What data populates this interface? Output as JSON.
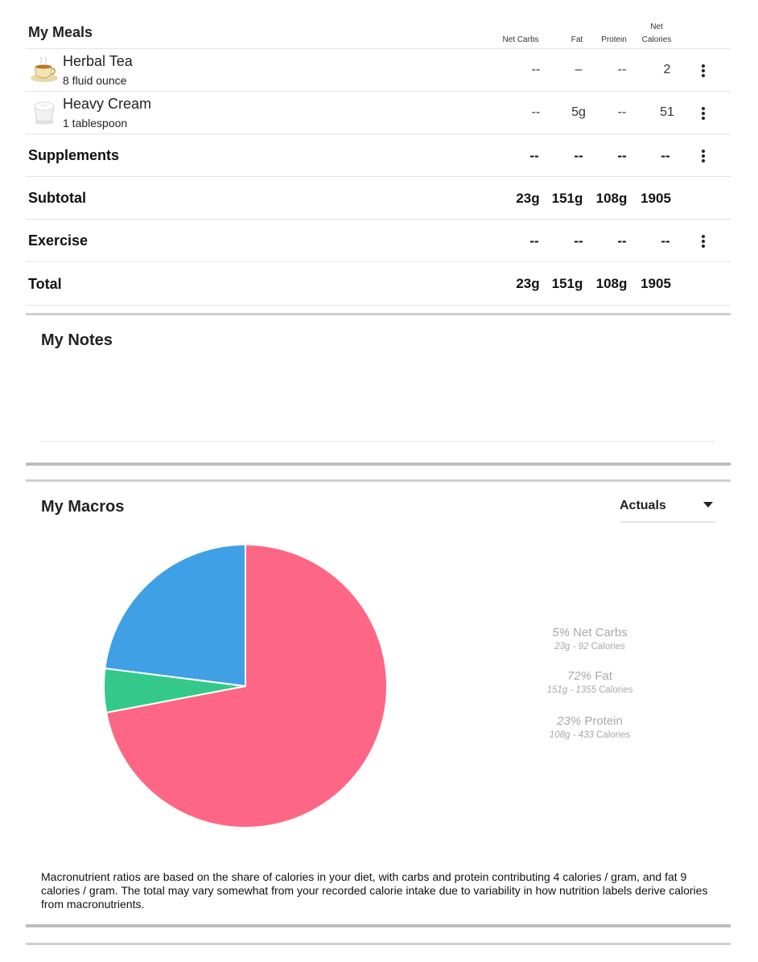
{
  "meals": {
    "title": "My Meals",
    "columns": {
      "net_carbs": "Net Carbs",
      "fat": "Fat",
      "protein": "Protein",
      "net_calories_1": "Net",
      "net_calories_2": "Calories"
    },
    "items": [
      {
        "name": "Herbal Tea",
        "qty": "8 fluid ounce",
        "net_carbs": "--",
        "fat": "–",
        "protein": "--",
        "calories": "2",
        "icon": "tea-cup-icon"
      },
      {
        "name": "Heavy Cream",
        "qty": "1 tablespoon",
        "net_carbs": "--",
        "fat": "5g",
        "protein": "--",
        "calories": "51",
        "icon": "cream-cup-icon"
      }
    ],
    "supplements": {
      "label": "Supplements",
      "net_carbs": "--",
      "fat": "--",
      "protein": "--",
      "calories": "--"
    },
    "subtotal": {
      "label": "Subtotal",
      "net_carbs": "23g",
      "fat": "151g",
      "protein": "108g",
      "calories": "1905"
    },
    "exercise": {
      "label": "Exercise",
      "net_carbs": "--",
      "fat": "--",
      "protein": "--",
      "calories": "--"
    },
    "total": {
      "label": "Total",
      "net_carbs": "23g",
      "fat": "151g",
      "protein": "108g",
      "calories": "1905"
    }
  },
  "notes": {
    "title": "My Notes"
  },
  "macros": {
    "title": "My Macros",
    "dropdown": {
      "selected": "Actuals"
    },
    "colors": {
      "net_carbs": "#34c98a",
      "fat": "#fe6685",
      "protein": "#3fa0e6"
    },
    "legend": [
      {
        "pct": "5%",
        "name": "Net Carbs",
        "grams": "23g",
        "sep": " - ",
        "cal": "92",
        "cal_label": "Calories"
      },
      {
        "pct": "72%",
        "name": "Fat",
        "grams": "151g",
        "sep": " - ",
        "cal": "1355",
        "cal_label": "Calories"
      },
      {
        "pct": "23%",
        "name": "Protein",
        "grams": "108g",
        "sep": " - ",
        "cal": "433",
        "cal_label": "Calories"
      }
    ],
    "footnote": "Macronutrient ratios are based on the share of calories in your diet, with carbs and protein contributing 4 calories / gram, and fat 9 calories / gram. The total may vary somewhat from your recorded calorie intake due to variability in how nutrition labels derive calories from macronutrients."
  },
  "chart_data": {
    "type": "pie",
    "categories": [
      "Fat",
      "Net Carbs",
      "Protein"
    ],
    "values": [
      72,
      5,
      23
    ],
    "colors": [
      "#fe6685",
      "#34c98a",
      "#3fa0e6"
    ]
  }
}
